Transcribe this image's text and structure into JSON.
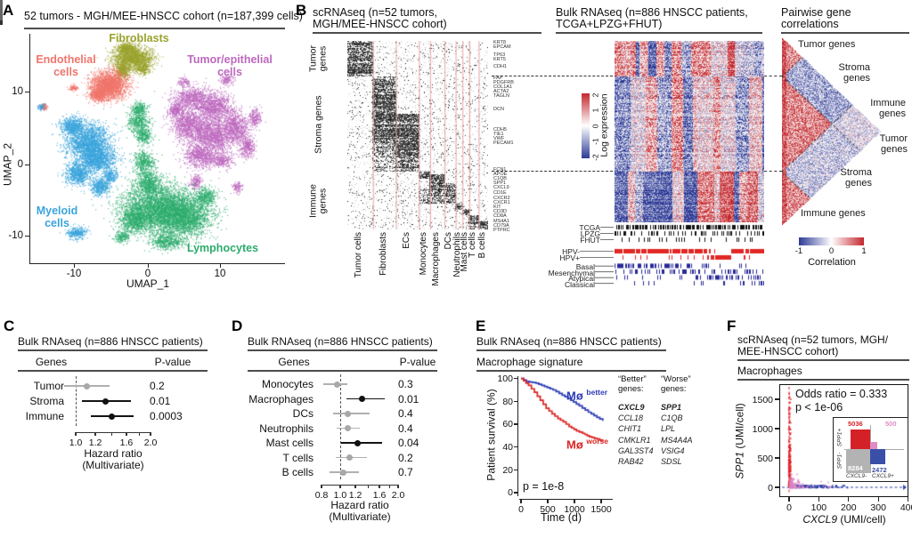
{
  "a": {
    "label": "A",
    "title": "52 tumors - MGH/MEE-HNSCC cohort (n=187,399 cells)",
    "xlabel": "UMAP_1",
    "ylabel": "UMAP_2",
    "xticks": [
      "-10",
      "0",
      "10"
    ],
    "yticks": [
      "10",
      "0",
      "-10"
    ],
    "clusters": [
      {
        "name": "Fibroblasts",
        "label": "Fibroblasts",
        "color": "#9aa32c",
        "blobs": [
          [
            -2.2,
            14.8,
            2.6,
            1.5
          ],
          [
            -3.5,
            13.0,
            0.9,
            1.1
          ],
          [
            -0.8,
            13.4,
            0.9,
            0.9
          ],
          [
            -3.0,
            16.1,
            1.1,
            0.7
          ]
        ],
        "n": 2600
      },
      {
        "name": "Endothelial cells",
        "label": "Endothelial\ncells",
        "color": "#f0756b",
        "blobs": [
          [
            -5.3,
            11.0,
            2.3,
            1.8
          ],
          [
            -6.9,
            9.7,
            1.1,
            0.9
          ],
          [
            -10.2,
            10.6,
            0.5,
            0.35
          ],
          [
            -14.3,
            8.0,
            0.5,
            0.4
          ]
        ],
        "n": 2800
      },
      {
        "name": "Tumor/epithelial cells",
        "label": "Tumor/epithelial\ncells",
        "color": "#bd68be",
        "blobs": [
          [
            6,
            9.2,
            2.3,
            1.5
          ],
          [
            9,
            8,
            2.6,
            2
          ],
          [
            5.3,
            5.6,
            2,
            2
          ],
          [
            8.6,
            4.2,
            3,
            2.4
          ],
          [
            12,
            5,
            1.6,
            2.2
          ],
          [
            7,
            1.2,
            2,
            1.5
          ],
          [
            10,
            0.6,
            1.6,
            1
          ],
          [
            13.6,
            2.4,
            1,
            1.4
          ],
          [
            6.6,
            -2.4,
            0.8,
            1
          ],
          [
            12.2,
            -3.1,
            0.7,
            0.7
          ],
          [
            3.8,
            7.6,
            1.1,
            1
          ],
          [
            14.6,
            6.5,
            0.8,
            1.2
          ],
          [
            10.8,
            11.8,
            0.9,
            0.7
          ],
          [
            4.9,
            11.4,
            0.8,
            0.6
          ]
        ],
        "n": 7200
      },
      {
        "name": "Myeloid cells",
        "label": "Myeloid\ncells",
        "color": "#3aa4dc",
        "blobs": [
          [
            -8.2,
            3.2,
            2.8,
            2.3
          ],
          [
            -7,
            0.8,
            2.4,
            1.7
          ],
          [
            -9.6,
            -1.2,
            1.6,
            1.6
          ],
          [
            -6.6,
            -3,
            1.2,
            1.2
          ],
          [
            -10.4,
            5.4,
            1.5,
            1.2
          ],
          [
            -9.8,
            -9.4,
            1.3,
            0.8
          ],
          [
            -14.6,
            8,
            0.5,
            0.4
          ],
          [
            -5.2,
            -1.5,
            0.9,
            0.9
          ]
        ],
        "n": 5600
      },
      {
        "name": "Lymphocytes",
        "label": "Lymphocytes",
        "color": "#2bac6c",
        "blobs": [
          [
            1.5,
            -6,
            4.8,
            3.2
          ],
          [
            4.8,
            -7.2,
            3.8,
            2.6
          ],
          [
            -1.8,
            -7.6,
            2,
            1.8
          ],
          [
            0,
            -2.6,
            1.6,
            1.8
          ],
          [
            -0.6,
            0.4,
            1.3,
            1.4
          ],
          [
            -1.4,
            6,
            1.4,
            1.6
          ],
          [
            -0.6,
            4,
            1.1,
            1.1
          ],
          [
            2.6,
            -10.6,
            2.2,
            1
          ],
          [
            -1.2,
            7.8,
            1,
            0.8
          ],
          [
            7.8,
            -4.4,
            1.5,
            1.2
          ],
          [
            -3.6,
            -10,
            1,
            0.7
          ]
        ],
        "n": 9500
      }
    ]
  },
  "b": {
    "label": "B",
    "sc_title1": "scRNAseq (n=52 tumors,",
    "sc_title2": "MGH/MEE-HNSCC cohort)",
    "bulk_title1": "Bulk RNAseq (n=886 HNSCC patients,",
    "bulk_title2": "TCGA+LPZG+FHUT)",
    "corr_title1": "Pairwise gene",
    "corr_title2": "correlations",
    "row_groups": [
      "Tumor\ngenes",
      "Stroma genes",
      "Immune\ngenes"
    ],
    "marker_groups": [
      {
        "genes": [
          "KRT8",
          "EPCAM"
        ]
      },
      {
        "genes": [
          "TP63",
          "KRT5"
        ]
      },
      {
        "genes": [
          "CDH1"
        ]
      },
      {
        "genes": [
          "FAP",
          "PDGFRB",
          "COL1A1",
          "ACTA2",
          "TAGLN"
        ]
      },
      {
        "genes": [
          "DCN"
        ]
      },
      {
        "genes": [
          "CDH5",
          "TIE1",
          "VWF",
          "PECAM1"
        ]
      },
      {
        "genes": [
          "FCN1",
          "APOE",
          "C1QB",
          "SPP1",
          "CXCL9",
          "CD1E"
        ]
      },
      {
        "genes": [
          "CXCR2",
          "CXCR1",
          "KIT",
          "CD3D",
          "CD8A",
          "MS4A1",
          "CD79A",
          "PTPRC"
        ]
      }
    ],
    "colorbar_label": "Log expression",
    "colorbar_ticks": [
      "2",
      "1",
      "0",
      "-1",
      "-2"
    ],
    "sources": [
      "TCGA",
      "LPZG",
      "FHUT"
    ],
    "hpv": [
      "HPV-",
      "HPV+"
    ],
    "subtypes": [
      "Basal",
      "Mesenchymal",
      "Atypical",
      "Classical"
    ],
    "corr_labels": [
      "Tumor genes",
      "Stroma\ngenes",
      "Immune\ngenes",
      "Tumor\ngenes",
      "Stroma\ngenes",
      "Immune genes"
    ],
    "corr_colorbar_label": "Correlation",
    "corr_colorbar_ticks": [
      "-1",
      "0",
      "1"
    ]
  },
  "c": {
    "label": "C",
    "title": "Bulk RNAseq (n=886 HNSCC patients)",
    "col_genes": "Genes",
    "col_p": "P-value",
    "xlabel1": "Hazard ratio",
    "xlabel2": "(Multivariate)"
  },
  "d": {
    "label": "D",
    "title": "Bulk RNAseq (n=886 HNSCC patients)",
    "col_genes": "Genes",
    "col_p": "P-value",
    "xlabel1": "Hazard ratio",
    "xlabel2": "(Multivariate)"
  },
  "e": {
    "label": "E",
    "title": "Bulk RNAseq (n=886 HNSCC patients)",
    "subtitle": "Macrophage signature",
    "ylabel": "Patient survival (%)",
    "xlabel": "Time (d)",
    "pvalue": "p = 1e-8",
    "better_label": "Mø",
    "better_sup": "better",
    "worse_label": "Mø",
    "worse_sup": "worse",
    "gene_cols": [
      {
        "header": "“Better”\ngenes:",
        "genes": [
          "CXCL9",
          "CCL18",
          "CHIT1",
          "CMKLR1",
          "GAL3ST4",
          "RAB42"
        ]
      },
      {
        "header": "“Worse”\ngenes:",
        "genes": [
          "SPP1",
          "C1QB",
          "LPL",
          "MS4A4A",
          "VSIG4",
          "SDSL"
        ]
      }
    ]
  },
  "f": {
    "label": "F",
    "title1": "scRNAseq (n=52 tumors, MGH/",
    "title2": "MEE-HNSCC cohort)",
    "subtitle": "Macrophages",
    "stats1": "Odds ratio = 0.333",
    "stats2": "p < 1e-06",
    "xlabel_gene": "CXCL9",
    "xlabel_units": " (UMI/cell)",
    "ylabel_gene": "SPP1",
    "ylabel_units": " (UMI/cell)",
    "inset": {
      "counts": [
        "5036",
        "500",
        "8284",
        "2472"
      ],
      "row_labels": [
        "SPP1+",
        "SPP1-"
      ],
      "col_labels": [
        "CXCL9-",
        "CXCL9+"
      ]
    }
  },
  "chart_data": [
    {
      "id": "A_umap",
      "type": "scatter",
      "title": "52 tumors - MGH/MEE-HNSCC cohort (n=187,399 cells)",
      "xlabel": "UMAP_1",
      "ylabel": "UMAP_2",
      "xticks": [
        -10,
        0,
        10
      ],
      "yticks": [
        10,
        0,
        -10
      ],
      "xlim": [
        -16.2,
        18.8
      ],
      "ylim": [
        -13.7,
        17.9
      ],
      "clusters": [
        "Tumor/epithelial cells",
        "Fibroblasts",
        "Endothelial cells",
        "Myeloid cells",
        "Lymphocytes"
      ]
    },
    {
      "id": "B_sc",
      "type": "heatmap",
      "title": "scRNAseq (n=52 tumors, MGH/MEE-HNSCC cohort)",
      "row_groups": [
        "Tumor genes",
        "Stroma genes",
        "Immune genes"
      ],
      "row_bands": [
        [
          0,
          40
        ],
        [
          40,
          147
        ],
        [
          147,
          212
        ]
      ],
      "columns": [
        {
          "name": "Tumor cells",
          "w": 30,
          "blocks": [
            [
              0,
              40,
              0.72
            ]
          ]
        },
        {
          "name": "Fibroblasts",
          "w": 27,
          "blocks": [
            [
              40,
              115,
              0.7
            ],
            [
              115,
              147,
              0.35
            ]
          ]
        },
        {
          "name": "ECs",
          "w": 27,
          "blocks": [
            [
              82,
              147,
              0.7
            ]
          ]
        },
        {
          "name": "Monocytes",
          "w": 13,
          "blocks": [
            [
              147,
              155,
              0.65
            ],
            [
              166,
              183,
              0.4
            ]
          ]
        },
        {
          "name": "Macrophages",
          "w": 17,
          "blocks": [
            [
              150,
              170,
              0.7
            ],
            [
              170,
              183,
              0.45
            ]
          ]
        },
        {
          "name": "DCs",
          "w": 13,
          "blocks": [
            [
              160,
              176,
              0.6
            ],
            [
              176,
              183,
              0.35
            ]
          ]
        },
        {
          "name": "Neutrophils",
          "w": 8,
          "blocks": [
            [
              183,
              190,
              0.65
            ]
          ]
        },
        {
          "name": "Mast cells",
          "w": 8,
          "blocks": [
            [
              189,
              196,
              0.7
            ]
          ]
        },
        {
          "name": "T cells",
          "w": 11,
          "blocks": [
            [
              196,
              206,
              0.7
            ],
            [
              208,
              212,
              0.45
            ]
          ]
        },
        {
          "name": "B cells",
          "w": 11,
          "blocks": [
            [
              202,
              212,
              0.7
            ]
          ]
        }
      ]
    },
    {
      "id": "B_bulk",
      "type": "heatmap",
      "title": "Bulk RNAseq (n=886 HNSCC patients, TCGA+LPZG+FHUT)",
      "colorbar": {
        "label": "Log expression",
        "ticks": [
          2,
          1,
          0,
          -1,
          -2
        ],
        "range": [
          -2,
          2
        ]
      },
      "row_bands": [
        [
          0,
          40
        ],
        [
          40,
          147
        ],
        [
          147,
          204
        ]
      ],
      "annotations": {
        "sources": [
          "TCGA",
          "LPZG",
          "FHUT"
        ],
        "hpv": [
          "HPV-",
          "HPV+"
        ],
        "subtypes": [
          "Basal",
          "Mesenchymal",
          "Atypical",
          "Classical"
        ]
      }
    },
    {
      "id": "B_corr",
      "type": "heatmap",
      "title": "Pairwise gene correlations",
      "colorbar": {
        "label": "Correlation",
        "ticks": [
          -1,
          0,
          1
        ],
        "range": [
          -1,
          1
        ]
      },
      "block_boundaries": [
        0.206,
        0.718
      ],
      "blocks": [
        "Tumor genes",
        "Stroma genes",
        "Immune genes"
      ]
    },
    {
      "id": "C_forest",
      "type": "scatter",
      "title": "Bulk RNAseq (n=886 HNSCC patients)",
      "xlabel": "Hazard ratio (Multivariate)",
      "scale": "log",
      "xlim": [
        1.0,
        2.0
      ],
      "ticks": [
        1.0,
        1.2,
        1.4,
        1.6,
        1.8,
        2.0
      ],
      "tick_labels": [
        "1.0",
        "1.2",
        "1.6",
        "2.0"
      ],
      "tick_label_vals": [
        1.0,
        1.2,
        1.6,
        2.0
      ],
      "rows": [
        {
          "name": "Tumor",
          "hr": 1.11,
          "ci": [
            0.9,
            1.37
          ],
          "p": "0.2",
          "significant": false
        },
        {
          "name": "Stroma",
          "hr": 1.32,
          "ci": [
            1.06,
            1.67
          ],
          "p": "0.01",
          "significant": true
        },
        {
          "name": "Immune",
          "hr": 1.4,
          "ci": [
            1.15,
            1.71
          ],
          "p": "0.0003",
          "significant": true
        }
      ]
    },
    {
      "id": "D_forest",
      "type": "scatter",
      "title": "Bulk RNAseq (n=886 HNSCC patients)",
      "xlabel": "Hazard ratio (Multivariate)",
      "scale": "log",
      "xlim": [
        0.8,
        2.0
      ],
      "ticks": [
        0.8,
        1.0,
        1.2,
        1.4,
        1.6,
        1.8,
        2.0
      ],
      "tick_labels": [
        "0.8",
        "1.0",
        "1.2",
        "1.6",
        "2.0"
      ],
      "tick_label_vals": [
        0.8,
        1.0,
        1.2,
        1.6,
        2.0
      ],
      "rows": [
        {
          "name": "Monocytes",
          "hr": 0.96,
          "ci": [
            0.82,
            1.09
          ],
          "p": "0.3",
          "significant": false
        },
        {
          "name": "Macrophages",
          "hr": 1.3,
          "ci": [
            1.08,
            1.7
          ],
          "p": "0.01",
          "significant": true
        },
        {
          "name": "DCs",
          "hr": 1.1,
          "ci": [
            0.92,
            1.42
          ],
          "p": "0.4",
          "significant": false
        },
        {
          "name": "Neutrophils",
          "hr": 1.09,
          "ci": [
            0.96,
            1.26
          ],
          "p": "0.4",
          "significant": false
        },
        {
          "name": "Mast cells",
          "hr": 1.23,
          "ci": [
            1.01,
            1.65
          ],
          "p": "0.04",
          "significant": true
        },
        {
          "name": "T cells",
          "hr": 1.12,
          "ci": [
            0.95,
            1.38
          ],
          "p": "0.2",
          "significant": false
        },
        {
          "name": "B cells",
          "hr": 1.04,
          "ci": [
            0.88,
            1.25
          ],
          "p": "0.7",
          "significant": false
        }
      ]
    },
    {
      "id": "E_survival",
      "type": "line",
      "title": "Macrophage signature",
      "xlabel": "Time (d)",
      "ylabel": "Patient survival (%)",
      "xticks": [
        0,
        500,
        1000,
        1500
      ],
      "yticks": [
        100,
        80,
        60,
        40,
        20,
        0
      ],
      "xlim": [
        0,
        1560
      ],
      "ylim": [
        0,
        100
      ],
      "pvalue": "p = 1e-8",
      "series": [
        {
          "name": "Mø better",
          "color": "#2d3cb5",
          "x": [
            0,
            100,
            280,
            440,
            600,
            770,
            930,
            1090,
            1260,
            1420,
            1530
          ],
          "y": [
            100,
            97.5,
            96,
            93,
            90,
            85.5,
            81,
            76,
            70.5,
            66,
            63
          ]
        },
        {
          "name": "Mø worse",
          "color": "#da2423",
          "x": [
            0,
            140,
            250,
            360,
            470,
            580,
            690,
            790,
            900,
            1040,
            1150,
            1280,
            1420,
            1530
          ],
          "y": [
            100,
            94,
            88,
            81,
            74,
            69,
            65,
            62,
            58,
            54,
            52,
            49,
            47,
            45
          ]
        }
      ],
      "better_genes": [
        "CXCL9",
        "CCL18",
        "CHIT1",
        "CMKLR1",
        "GAL3ST4",
        "RAB42"
      ],
      "worse_genes": [
        "SPP1",
        "C1QB",
        "LPL",
        "MS4A4A",
        "VSIG4",
        "SDSL"
      ]
    },
    {
      "id": "F_scatter",
      "type": "scatter",
      "title": "Macrophages",
      "xlabel": "CXCL9 (UMI/cell)",
      "ylabel": "SPP1 (UMI/cell)",
      "xticks": [
        0,
        100,
        200,
        300,
        400
      ],
      "yticks": [
        0,
        500,
        1000,
        1500
      ],
      "xlim": [
        -10,
        405
      ],
      "ylim": [
        -40,
        1750
      ],
      "odds_ratio": "0.333",
      "pvalue": "p < 1e-06",
      "contingency": {
        "SPP1pos_CXCL9neg": 5036,
        "SPP1pos_CXCL9pos": 500,
        "SPP1neg_CXCL9neg": 8284,
        "SPP1neg_CXCL9pos": 2472
      }
    }
  ]
}
